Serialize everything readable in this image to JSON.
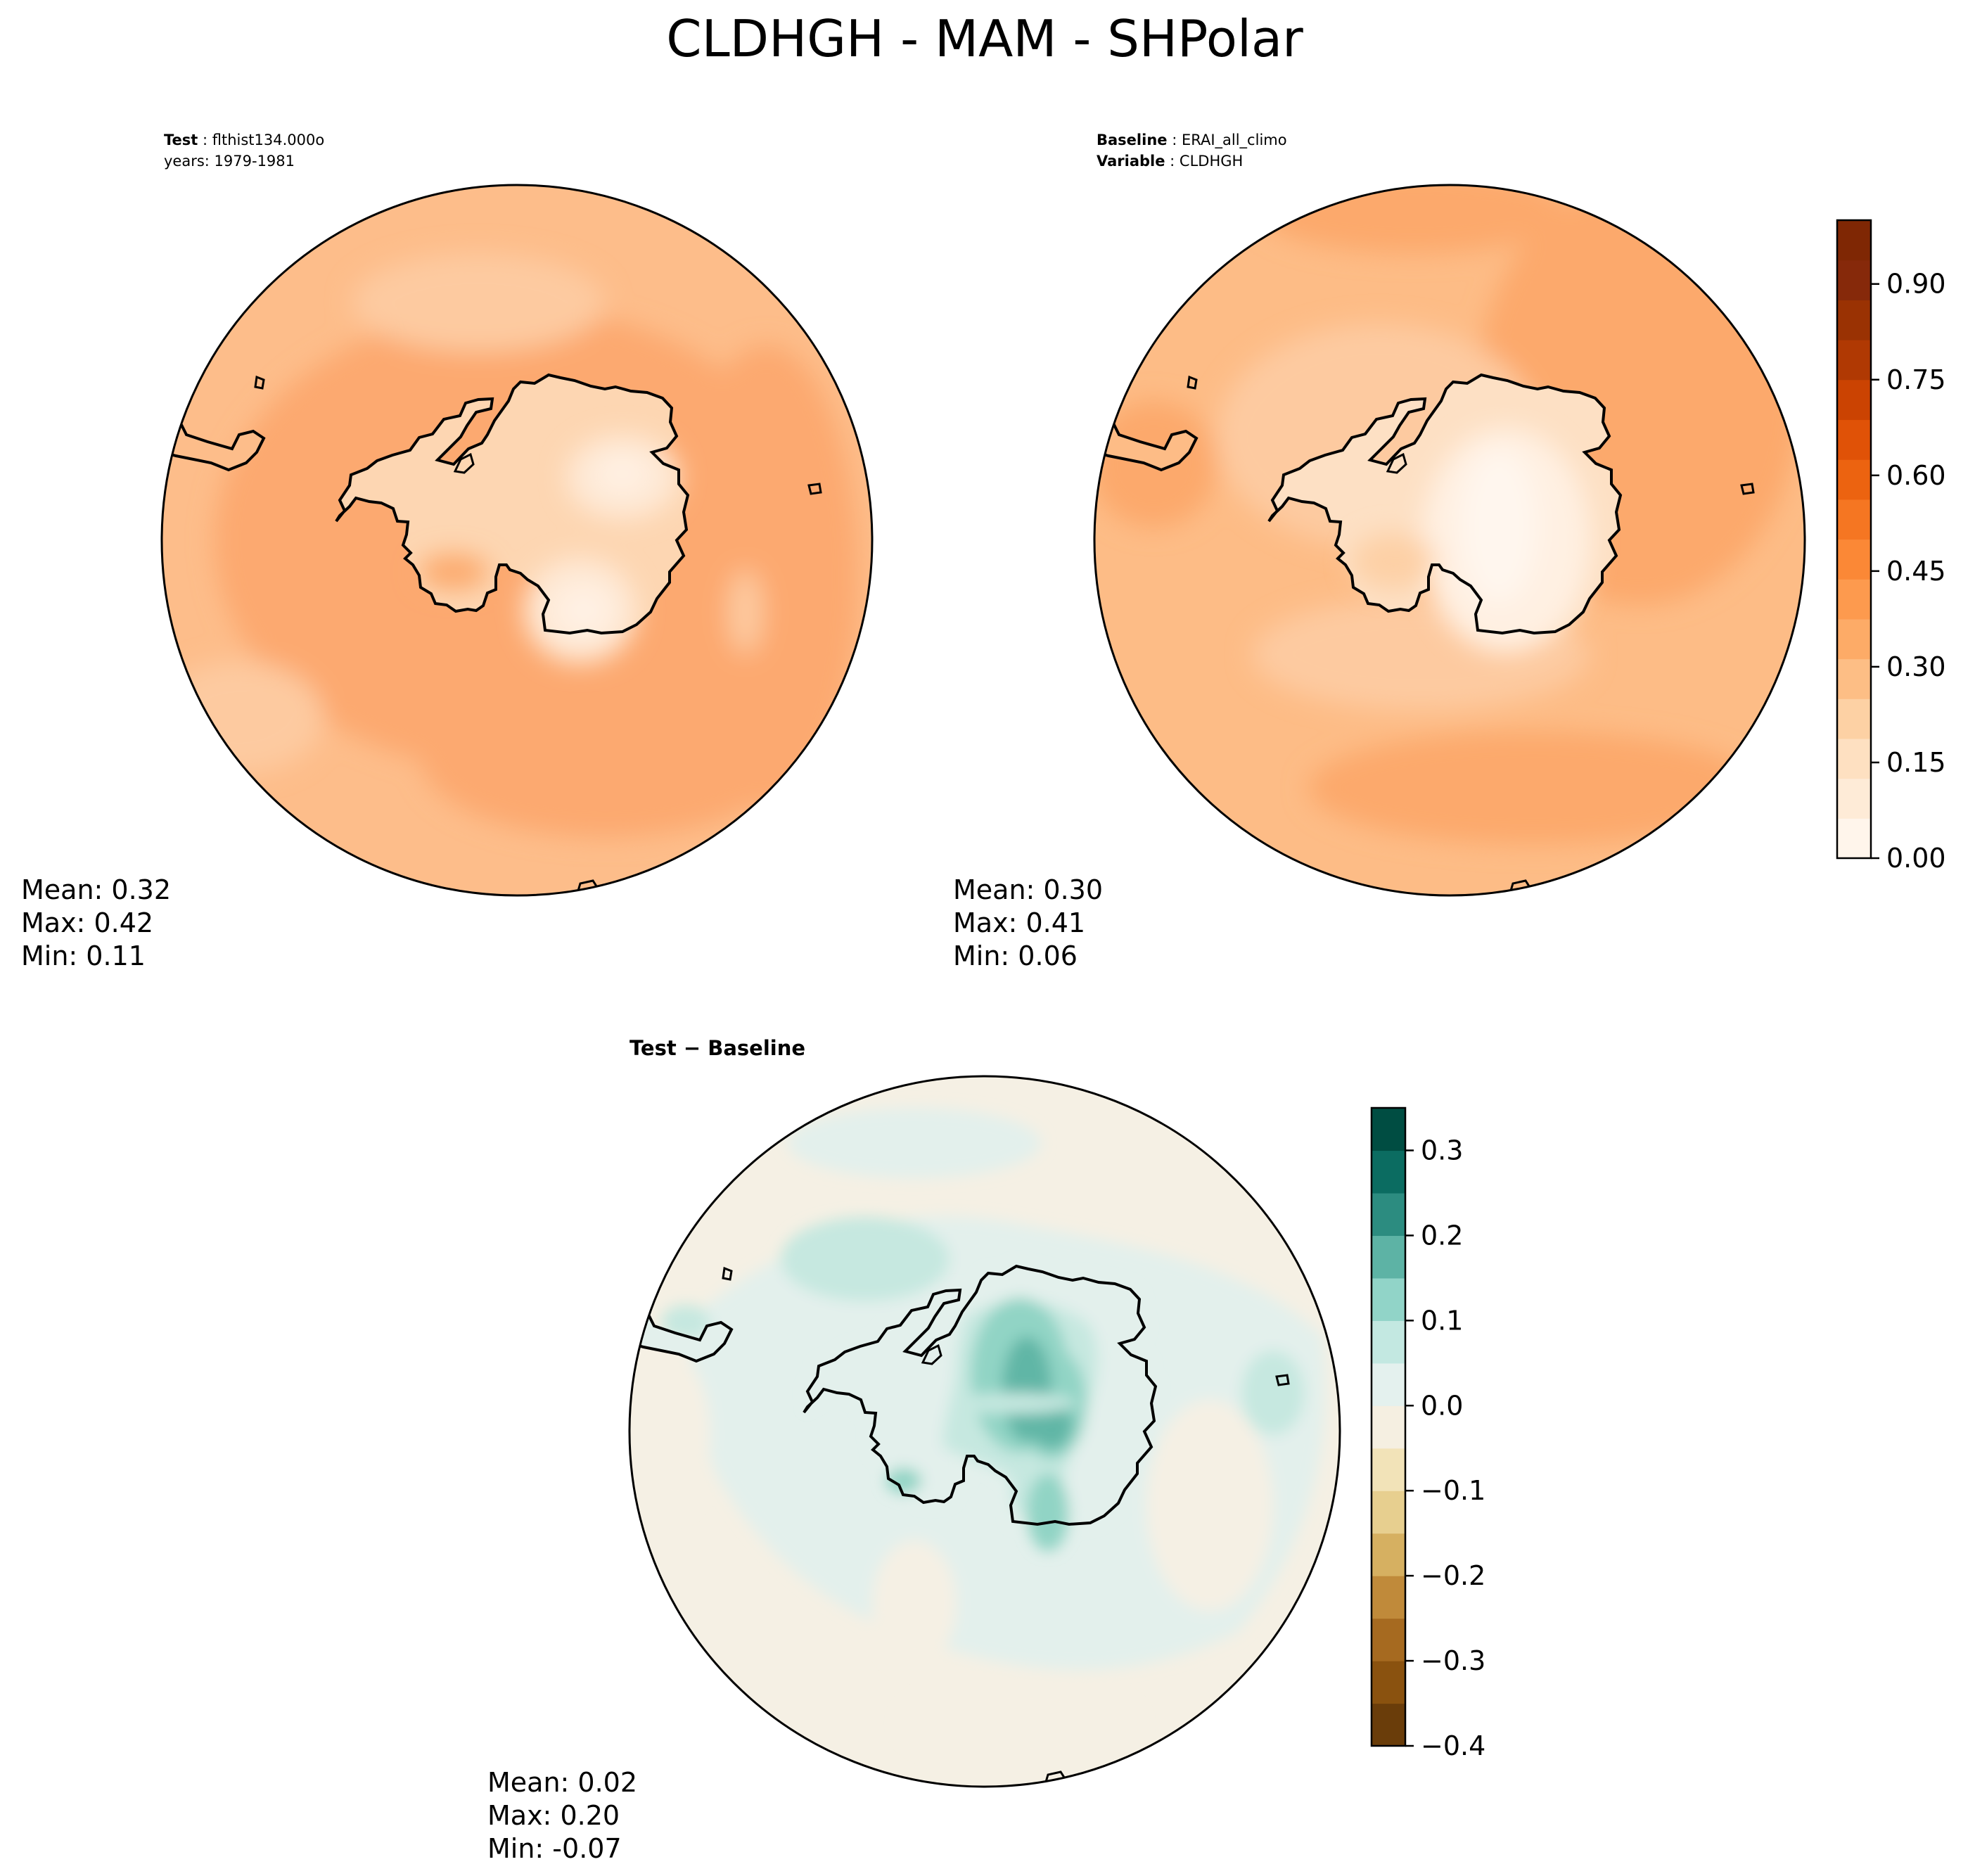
{
  "figure": {
    "title": "CLDHGH - MAM - SHPolar"
  },
  "panels": {
    "test": {
      "label_bold": "Test",
      "label_value": "flthist134.000o",
      "label_line2": "years: 1979-1981",
      "stats": {
        "mean": "Mean:  0.32",
        "max": "Max:  0.42",
        "min": "Min:  0.11"
      }
    },
    "baseline": {
      "label_bold": "Baseline",
      "label_value": "ERAI_all_climo",
      "label2_bold": "Variable",
      "label2_value": "CLDHGH",
      "stats": {
        "mean": "Mean:  0.30",
        "max": "Max:  0.41",
        "min": "Min:  0.06"
      }
    },
    "diff": {
      "title": "Test − Baseline",
      "stats": {
        "mean": "Mean:  0.02",
        "max": "Max:  0.20",
        "min": "Min: -0.07"
      }
    }
  },
  "chart_data": [
    {
      "type": "heatmap",
      "panel": "test",
      "projection": "south-polar-stereographic",
      "variable": "CLDHGH",
      "colormap": "Oranges",
      "colorbar": "shared with baseline",
      "stats": {
        "mean": 0.32,
        "max": 0.42,
        "min": 0.11
      }
    },
    {
      "type": "heatmap",
      "panel": "baseline",
      "projection": "south-polar-stereographic",
      "variable": "CLDHGH",
      "colormap": "Oranges",
      "levels_range": [
        0.0,
        1.0
      ],
      "colorbar_ticks": [
        "0.00",
        "0.15",
        "0.30",
        "0.45",
        "0.60",
        "0.75",
        "0.90"
      ],
      "colorbar_colors": [
        "#fff5eb",
        "#feebd7",
        "#fee0c1",
        "#fdd1a4",
        "#fdbe85",
        "#fdab67",
        "#fd9a4e",
        "#fb8836",
        "#f57622",
        "#ec6310",
        "#e05207",
        "#cb4302",
        "#b03903",
        "#9a3203",
        "#86290a",
        "#7f2704"
      ],
      "stats": {
        "mean": 0.3,
        "max": 0.41,
        "min": 0.06
      }
    },
    {
      "type": "heatmap",
      "panel": "diff",
      "projection": "south-polar-stereographic",
      "variable": "CLDHGH difference",
      "colormap": "BrBG",
      "levels_range": [
        -0.4,
        0.35
      ],
      "colorbar_ticks": [
        "−0.4",
        "−0.3",
        "−0.2",
        "−0.1",
        "0.0",
        "0.1",
        "0.2",
        "0.3"
      ],
      "colorbar_colors": [
        "#6a3d0a",
        "#8a520f",
        "#a66a20",
        "#c08a3a",
        "#d6b061",
        "#e7cf8f",
        "#f2e3b8",
        "#f5efe1",
        "#e4f1ee",
        "#c3e8e1",
        "#91d4c8",
        "#5db3a5",
        "#2c8c80",
        "#0b6c61",
        "#004d42"
      ],
      "stats": {
        "mean": 0.02,
        "max": 0.2,
        "min": -0.07
      }
    }
  ],
  "colors": {
    "ocean_test": "#fdbd8a",
    "ocean_test_band": "#fca970",
    "ocean_base": "#fdbc86",
    "ocean_base_band": "#fca96c",
    "land_test": "#fee4cb",
    "land_base": "#fdebd8",
    "diff_bg": "#f5f0e4",
    "diff_light": "#e3f0ec",
    "diff_mid": "#bfe6de",
    "diff_strong": "#8fd2c4",
    "diff_max": "#5fb5a5"
  }
}
